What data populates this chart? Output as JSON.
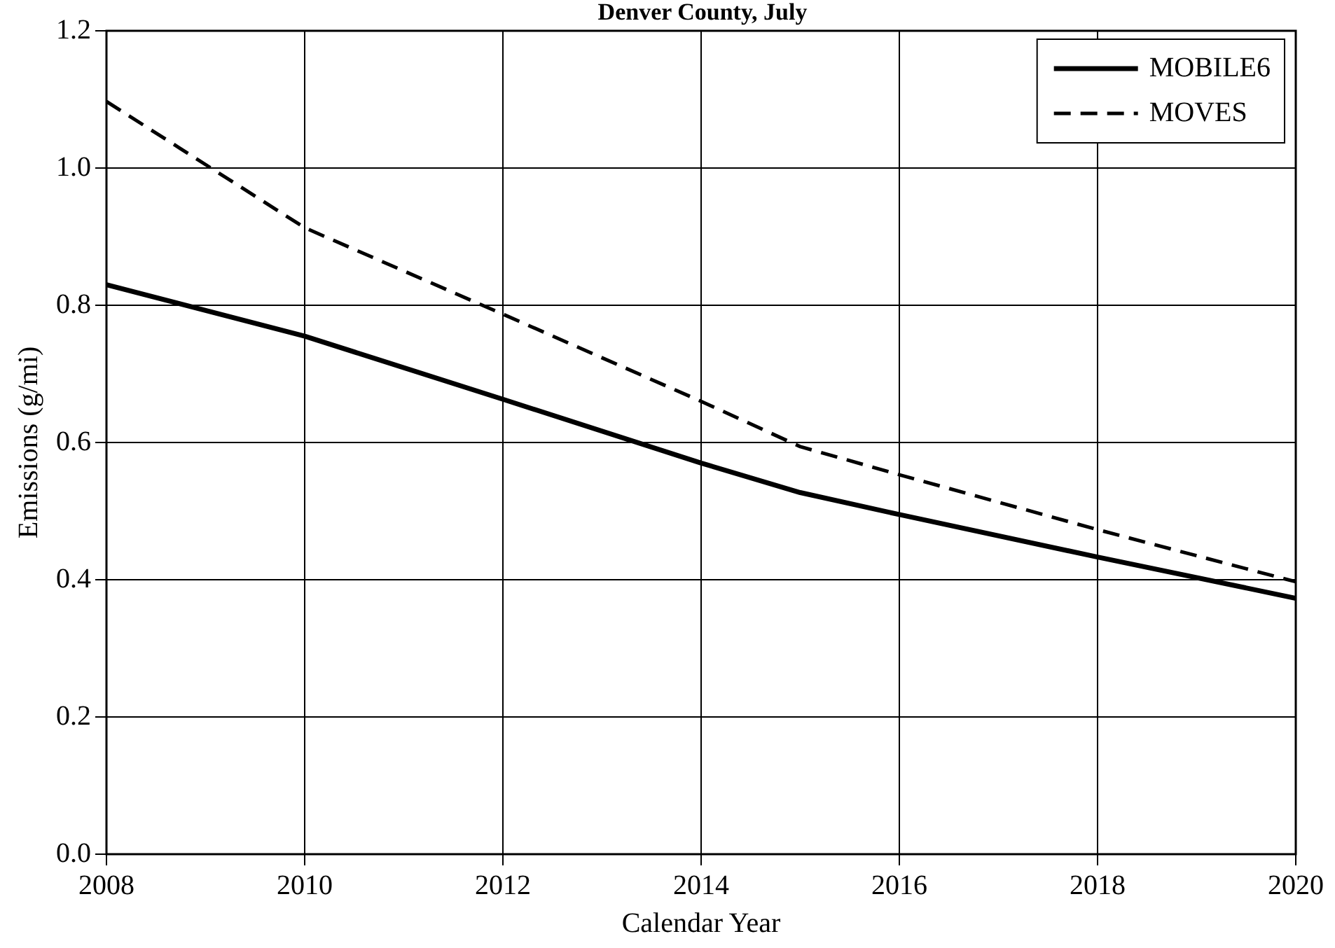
{
  "chart_data": {
    "type": "line",
    "title": "Denver County, July",
    "xlabel": "Calendar Year",
    "ylabel": "Emissions (g/mi)",
    "series": [
      {
        "name": "MOBILE6",
        "color": "#000000",
        "line_style": "solid",
        "x": [
          2008,
          2010,
          2012,
          2014,
          2015,
          2016,
          2018,
          2020
        ],
        "values": [
          0.83,
          0.755,
          0.663,
          0.57,
          0.527,
          0.495,
          0.433,
          0.373
        ]
      },
      {
        "name": "MOVES",
        "color": "#000000",
        "line_style": "dashed",
        "x": [
          2008,
          2010,
          2012,
          2014,
          2015,
          2016,
          2018,
          2020
        ],
        "values": [
          1.097,
          0.913,
          0.787,
          0.66,
          0.594,
          0.553,
          0.473,
          0.397
        ]
      }
    ],
    "xlim": [
      2008,
      2020
    ],
    "xticks": [
      2008,
      2010,
      2012,
      2014,
      2016,
      2018,
      2020
    ],
    "ylim": [
      0,
      1.2
    ],
    "yticks": [
      {
        "value": 0,
        "label": "0.0"
      },
      {
        "value": 0.2,
        "label": "0.2"
      },
      {
        "value": 0.4,
        "label": "0.4"
      },
      {
        "value": 0.6,
        "label": "0.6"
      },
      {
        "value": 0.8,
        "label": "0.8"
      },
      {
        "value": 1,
        "label": "1.0"
      },
      {
        "value": 1.2,
        "label": "1.2"
      }
    ],
    "grid": true,
    "legend": "top right",
    "marker": "none"
  }
}
